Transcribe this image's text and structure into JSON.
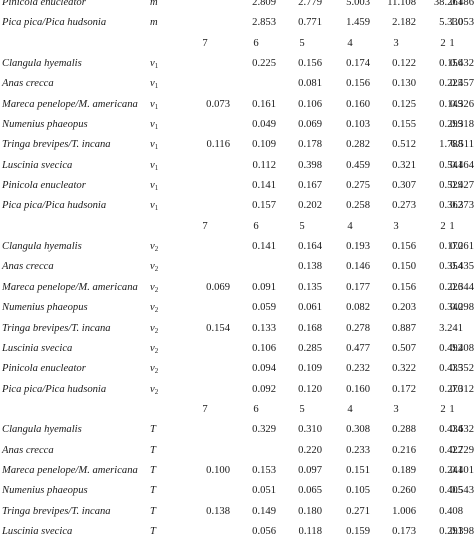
{
  "blocks": [
    {
      "header": null,
      "rows": [
        {
          "species": "Pinicola enucleator",
          "param": "m",
          "r": "",
          "values": [
            "2.809",
            "2.779",
            "5.003",
            "11.108",
            "38.261",
            "0.486"
          ]
        },
        {
          "species": "Pica pica/Pica hudsonia",
          "param": "m",
          "r": "",
          "values": [
            "2.853",
            "0.771",
            "1.459",
            "2.182",
            "5.330",
            "1.053"
          ]
        }
      ]
    },
    {
      "header": [
        "7",
        "6",
        "5",
        "4",
        "3",
        "2",
        "1"
      ],
      "rows": [
        {
          "species": "Clangula hyemalis",
          "param": "ν",
          "sub": "1",
          "r": "",
          "values": [
            "0.225",
            "0.156",
            "0.174",
            "0.122",
            "0.156",
            "0.432"
          ]
        },
        {
          "species": "Anas crecca",
          "param": "ν",
          "sub": "1",
          "r": "",
          "values": [
            "",
            "0.081",
            "0.156",
            "0.130",
            "0.225",
            "0.457"
          ]
        },
        {
          "species": "Mareca penelope/M. americana",
          "param": "ν",
          "sub": "1",
          "r": "0.073",
          "values": [
            "0.161",
            "0.106",
            "0.160",
            "0.125",
            "0.149",
            "0.326"
          ]
        },
        {
          "species": "Numenius phaeopus",
          "param": "ν",
          "sub": "1",
          "r": "",
          "values": [
            "0.049",
            "0.069",
            "0.103",
            "0.155",
            "0.299",
            "0.318"
          ]
        },
        {
          "species": "Tringa brevipes/T. incana",
          "param": "ν",
          "sub": "1",
          "r": "0.116",
          "values": [
            "0.109",
            "0.178",
            "0.282",
            "0.512",
            "1.788",
            "6.511"
          ]
        },
        {
          "species": "Luscinia svecica",
          "param": "ν",
          "sub": "1",
          "r": "",
          "values": [
            "0.112",
            "0.398",
            "0.459",
            "0.321",
            "0.541",
            "0.464"
          ]
        },
        {
          "species": "Pinicola enucleator",
          "param": "ν",
          "sub": "1",
          "r": "",
          "values": [
            "0.141",
            "0.167",
            "0.275",
            "0.307",
            "0.529",
            "0.427"
          ]
        },
        {
          "species": "Pica pica/Pica hudsonia",
          "param": "ν",
          "sub": "1",
          "r": "",
          "values": [
            "0.157",
            "0.202",
            "0.258",
            "0.273",
            "0.362",
            "0.373"
          ]
        }
      ]
    },
    {
      "header": [
        "7",
        "6",
        "5",
        "4",
        "3",
        "2",
        "1"
      ],
      "rows": [
        {
          "species": "Clangula hyemalis",
          "param": "ν",
          "sub": "2",
          "r": "",
          "values": [
            "0.141",
            "0.164",
            "0.193",
            "0.156",
            "0.170",
            "0.261"
          ]
        },
        {
          "species": "Anas crecca",
          "param": "ν",
          "sub": "2",
          "r": "",
          "values": [
            "",
            "0.138",
            "0.146",
            "0.150",
            "0.354",
            "0.435"
          ]
        },
        {
          "species": "Mareca penelope/M. americana",
          "param": "ν",
          "sub": "2",
          "r": "0.069",
          "values": [
            "0.091",
            "0.135",
            "0.177",
            "0.156",
            "0.226",
            "0.344"
          ]
        },
        {
          "species": "Numenius phaeopus",
          "param": "ν",
          "sub": "2",
          "r": "",
          "values": [
            "0.059",
            "0.061",
            "0.082",
            "0.203",
            "0.340",
            "0.298"
          ]
        },
        {
          "species": "Tringa brevipes/T. incana",
          "param": "ν",
          "sub": "2",
          "r": "0.154",
          "values": [
            "0.133",
            "0.168",
            "0.278",
            "0.887",
            "3.241",
            ""
          ]
        },
        {
          "species": "Luscinia svecica",
          "param": "ν",
          "sub": "2",
          "r": "",
          "values": [
            "0.106",
            "0.285",
            "0.477",
            "0.507",
            "0.492",
            "0.408"
          ]
        },
        {
          "species": "Pinicola enucleator",
          "param": "ν",
          "sub": "2",
          "r": "",
          "values": [
            "0.094",
            "0.109",
            "0.232",
            "0.322",
            "0.435",
            "0.352"
          ]
        },
        {
          "species": "Pica pica/Pica hudsonia",
          "param": "ν",
          "sub": "2",
          "r": "",
          "values": [
            "0.092",
            "0.120",
            "0.160",
            "0.172",
            "0.270",
            "0.312"
          ]
        }
      ]
    },
    {
      "header": [
        "7",
        "6",
        "5",
        "4",
        "3",
        "2",
        "1"
      ],
      "rows": [
        {
          "species": "Clangula hyemalis",
          "param": "T",
          "r": "",
          "values": [
            "0.329",
            "0.310",
            "0.308",
            "0.288",
            "0.434",
            "0.632"
          ]
        },
        {
          "species": "Anas crecca",
          "param": "T",
          "r": "",
          "values": [
            "",
            "0.220",
            "0.233",
            "0.216",
            "0.422",
            "0.729"
          ]
        },
        {
          "species": "Mareca penelope/M. americana",
          "param": "T",
          "r": "0.100",
          "values": [
            "0.153",
            "0.097",
            "0.151",
            "0.189",
            "0.241",
            "0.401"
          ]
        },
        {
          "species": "Numenius phaeopus",
          "param": "T",
          "r": "",
          "values": [
            "0.051",
            "0.065",
            "0.105",
            "0.260",
            "0.405",
            "0.543"
          ]
        },
        {
          "species": "Tringa brevipes/T. incana",
          "param": "T",
          "r": "0.138",
          "values": [
            "0.149",
            "0.180",
            "0.271",
            "1.006",
            "0.408",
            ""
          ]
        },
        {
          "species": "Luscinia svecica",
          "param": "T",
          "r": "",
          "values": [
            "0.056",
            "0.118",
            "0.159",
            "0.173",
            "0.291",
            "0.398"
          ]
        }
      ]
    }
  ]
}
